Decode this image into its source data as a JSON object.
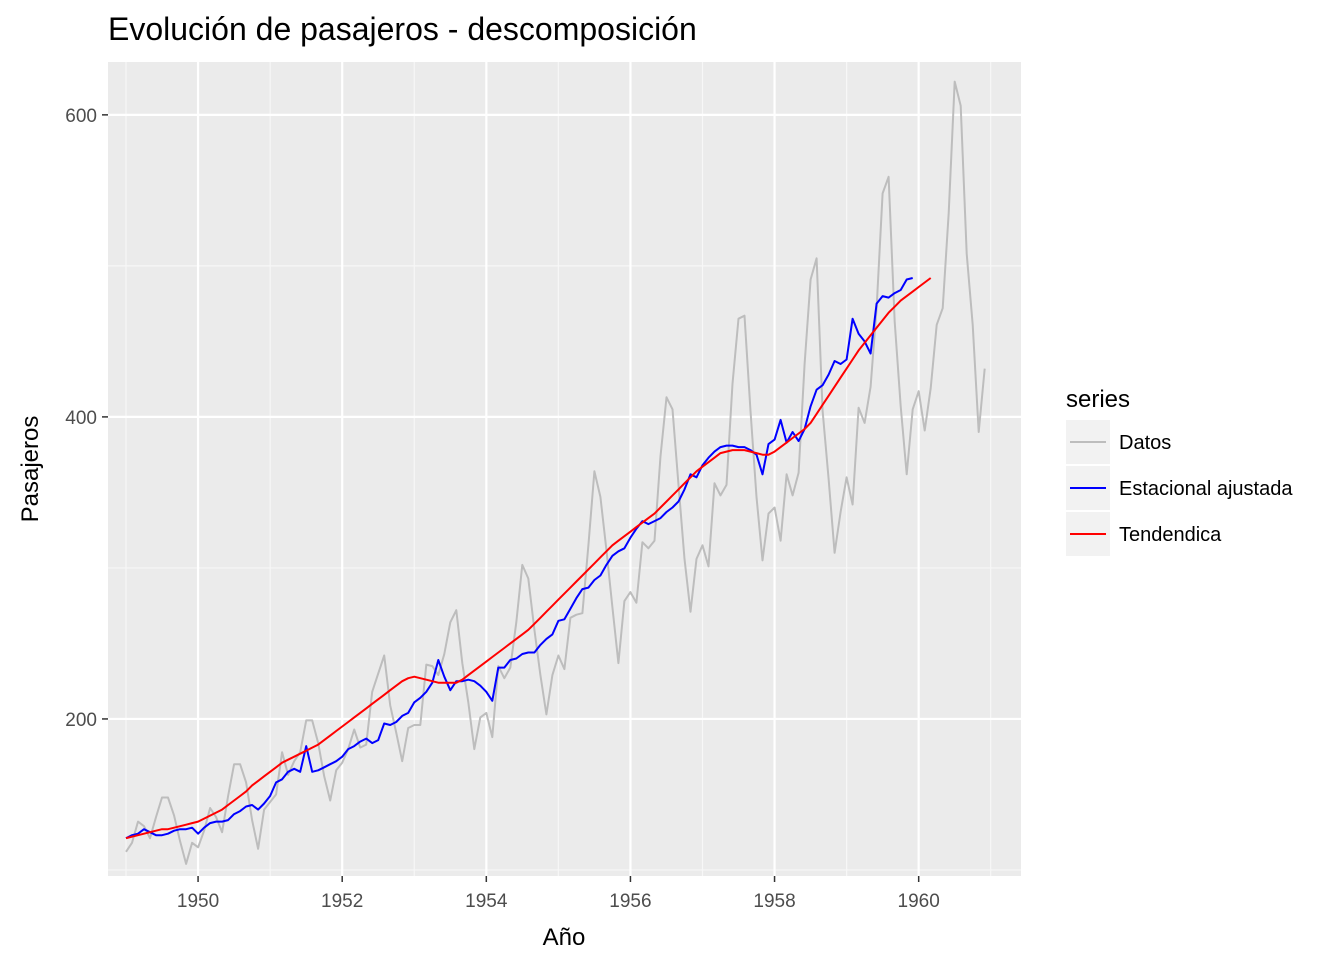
{
  "chart_data": {
    "type": "line",
    "title": "Evolución de pasajeros - descomposición",
    "xlabel": "Año",
    "ylabel": "Pasajeros",
    "xlim": [
      1948.75,
      1961.42
    ],
    "ylim": [
      96,
      635
    ],
    "x_ticks": [
      1950,
      1952,
      1954,
      1956,
      1958,
      1960
    ],
    "x_tick_labels": [
      "1950",
      "1952",
      "1954",
      "1956",
      "1958",
      "1960"
    ],
    "y_ticks": [
      200,
      400,
      600
    ],
    "y_tick_labels": [
      "200",
      "400",
      "600"
    ],
    "grid": true,
    "legend_title": "series",
    "legend_position": "right",
    "x_start": 1949,
    "x_step": 0.0833333,
    "series": [
      {
        "name": "Datos",
        "color": "#bdbdbd",
        "values": [
          112,
          118,
          132,
          129,
          121,
          135,
          148,
          148,
          136,
          119,
          104,
          118,
          115,
          126,
          141,
          135,
          125,
          149,
          170,
          170,
          158,
          133,
          114,
          140,
          145,
          150,
          178,
          163,
          172,
          178,
          199,
          199,
          184,
          162,
          146,
          166,
          171,
          180,
          193,
          181,
          183,
          218,
          230,
          242,
          209,
          191,
          172,
          194,
          196,
          196,
          236,
          235,
          229,
          243,
          264,
          272,
          237,
          211,
          180,
          201,
          204,
          188,
          235,
          227,
          234,
          264,
          302,
          293,
          259,
          229,
          203,
          229,
          242,
          233,
          267,
          269,
          270,
          315,
          364,
          347,
          312,
          274,
          237,
          278,
          284,
          277,
          317,
          313,
          318,
          374,
          413,
          405,
          355,
          306,
          271,
          306,
          315,
          301,
          356,
          348,
          355,
          422,
          465,
          467,
          404,
          347,
          305,
          336,
          340,
          318,
          362,
          348,
          363,
          435,
          491,
          505,
          404,
          359,
          310,
          337,
          360,
          342,
          406,
          396,
          420,
          472,
          548,
          559,
          463,
          407,
          362,
          405,
          417,
          391,
          419,
          461,
          472,
          535,
          622,
          606,
          508,
          461,
          390,
          432
        ]
      },
      {
        "name": "Estacional ajustada",
        "color": "#0000ff",
        "values": [
          121,
          123,
          124,
          127,
          125,
          123,
          123,
          124,
          126,
          127,
          127,
          128,
          124,
          128,
          131,
          132,
          132,
          133,
          137,
          139,
          142,
          143,
          140,
          144,
          149,
          158,
          160,
          165,
          167,
          165,
          182,
          165,
          166,
          168,
          170,
          172,
          175,
          180,
          182,
          185,
          187,
          184,
          186,
          197,
          196,
          198,
          202,
          204,
          211,
          214,
          218,
          224,
          239,
          228,
          219,
          225,
          225,
          226,
          225,
          222,
          218,
          212,
          234,
          234,
          239,
          240,
          243,
          244,
          244,
          249,
          253,
          256,
          265,
          266,
          273,
          280,
          286,
          287,
          292,
          295,
          302,
          308,
          311,
          313,
          320,
          326,
          331,
          329,
          331,
          333,
          337,
          340,
          344,
          352,
          362,
          360,
          368,
          373,
          377,
          380,
          381,
          381,
          380,
          380,
          378,
          375,
          362,
          382,
          385,
          398,
          383,
          390,
          384,
          392,
          407,
          418,
          421,
          428,
          437,
          435,
          438,
          465,
          455,
          450,
          442,
          475,
          480,
          479,
          482,
          484,
          491,
          492
        ]
      },
      {
        "name": "Tendendica",
        "color": "#ff0000",
        "values": [
          121,
          122,
          123,
          124,
          125,
          126,
          127,
          127,
          128,
          129,
          130,
          131,
          132,
          134,
          136,
          138,
          140,
          143,
          146,
          149,
          152,
          156,
          159,
          162,
          165,
          168,
          171,
          173,
          175,
          177,
          179,
          181,
          183,
          186,
          189,
          192,
          195,
          198,
          201,
          204,
          207,
          210,
          213,
          216,
          219,
          222,
          225,
          227,
          228,
          227,
          226,
          225,
          224,
          224,
          224,
          224,
          226,
          229,
          232,
          235,
          238,
          241,
          244,
          247,
          250,
          253,
          256,
          259,
          263,
          267,
          271,
          275,
          279,
          283,
          287,
          291,
          295,
          299,
          303,
          307,
          311,
          315,
          318,
          321,
          324,
          327,
          330,
          333,
          336,
          340,
          344,
          348,
          352,
          356,
          360,
          364,
          367,
          370,
          373,
          376,
          377,
          378,
          378,
          378,
          377,
          376,
          375,
          375,
          377,
          380,
          383,
          386,
          389,
          392,
          396,
          402,
          408,
          414,
          420,
          426,
          432,
          438,
          444,
          449,
          454,
          459,
          464,
          469,
          473,
          477,
          480,
          483,
          486,
          489,
          492
        ]
      }
    ]
  }
}
